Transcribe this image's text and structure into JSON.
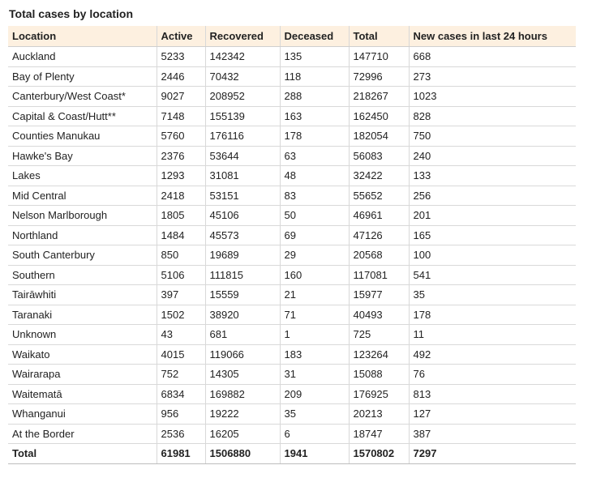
{
  "title": "Total cases by location",
  "columns": [
    "Location",
    "Active",
    "Recovered",
    "Deceased",
    "Total",
    "New cases in last 24 hours"
  ],
  "rows": [
    [
      "Auckland",
      "5233",
      "142342",
      "135",
      "147710",
      "668"
    ],
    [
      "Bay of Plenty",
      "2446",
      "70432",
      "118",
      "72996",
      "273"
    ],
    [
      "Canterbury/West Coast*",
      "9027",
      "208952",
      "288",
      "218267",
      "1023"
    ],
    [
      "Capital & Coast/Hutt**",
      "7148",
      "155139",
      "163",
      "162450",
      "828"
    ],
    [
      "Counties Manukau",
      "5760",
      "176116",
      "178",
      "182054",
      "750"
    ],
    [
      "Hawke's Bay",
      "2376",
      "53644",
      "63",
      "56083",
      "240"
    ],
    [
      "Lakes",
      "1293",
      "31081",
      "48",
      "32422",
      "133"
    ],
    [
      "Mid Central",
      "2418",
      "53151",
      "83",
      "55652",
      "256"
    ],
    [
      "Nelson Marlborough",
      "1805",
      "45106",
      "50",
      "46961",
      "201"
    ],
    [
      "Northland",
      "1484",
      "45573",
      "69",
      "47126",
      "165"
    ],
    [
      "South Canterbury",
      "850",
      "19689",
      "29",
      "20568",
      "100"
    ],
    [
      "Southern",
      "5106",
      "111815",
      "160",
      "117081",
      "541"
    ],
    [
      "Tairāwhiti",
      "397",
      "15559",
      "21",
      "15977",
      "35"
    ],
    [
      "Taranaki",
      "1502",
      "38920",
      "71",
      "40493",
      "178"
    ],
    [
      "Unknown",
      "43",
      "681",
      "1",
      "725",
      "11"
    ],
    [
      "Waikato",
      "4015",
      "119066",
      "183",
      "123264",
      "492"
    ],
    [
      "Wairarapa",
      "752",
      "14305",
      "31",
      "15088",
      "76"
    ],
    [
      "Waitematā",
      "6834",
      "169882",
      "209",
      "176925",
      "813"
    ],
    [
      "Whanganui",
      "956",
      "19222",
      "35",
      "20213",
      "127"
    ],
    [
      "At the Border",
      "2536",
      "16205",
      "6",
      "18747",
      "387"
    ]
  ],
  "total": [
    "Total",
    "61981",
    "1506880",
    "1941",
    "1570802",
    "7297"
  ],
  "colors": {
    "header_bg": "#fdf0e0",
    "border": "#d9d9d9"
  }
}
